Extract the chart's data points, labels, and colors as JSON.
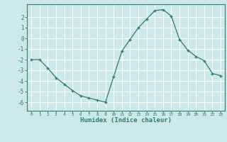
{
  "x": [
    0,
    1,
    2,
    3,
    4,
    5,
    6,
    7,
    8,
    9,
    10,
    11,
    12,
    13,
    14,
    15,
    16,
    17,
    18,
    19,
    20,
    21,
    22,
    23
  ],
  "y": [
    -2.0,
    -2.0,
    -2.8,
    -3.7,
    -4.3,
    -4.9,
    -5.4,
    -5.6,
    -5.8,
    -6.0,
    -3.6,
    -1.2,
    -0.1,
    1.0,
    1.8,
    2.6,
    2.7,
    2.1,
    -0.1,
    -1.1,
    -1.7,
    -2.1,
    -3.3,
    -3.5
  ],
  "xlabel": "Humidex (Indice chaleur)",
  "ylim": [
    -6.8,
    3.2
  ],
  "xlim": [
    -0.5,
    23.5
  ],
  "yticks": [
    -6,
    -5,
    -4,
    -3,
    -2,
    -1,
    0,
    1,
    2
  ],
  "xticks": [
    0,
    1,
    2,
    3,
    4,
    5,
    6,
    7,
    8,
    9,
    10,
    11,
    12,
    13,
    14,
    15,
    16,
    17,
    18,
    19,
    20,
    21,
    22,
    23
  ],
  "line_color": "#2e7d6e",
  "marker": "+",
  "bg_color": "#cce8e8",
  "grid_color": "#ffffff"
}
